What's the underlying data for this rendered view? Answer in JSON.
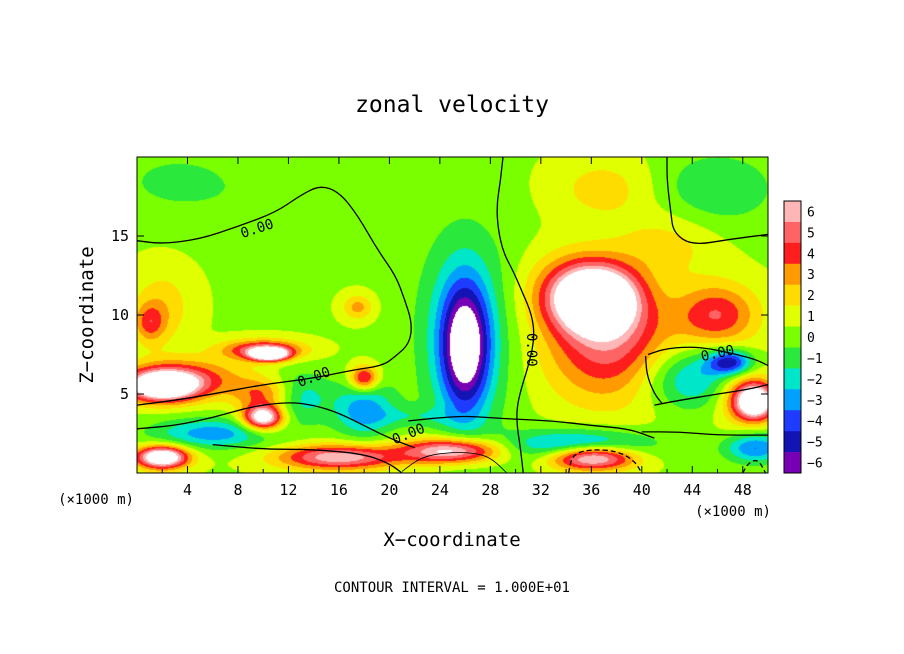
{
  "chart_data": {
    "type": "heatmap",
    "title": "zonal velocity",
    "xlabel": "X−coordinate",
    "ylabel": "Z−coordinate",
    "x_unit": "(×1000 m)",
    "y_unit": "(×1000 m)",
    "xlim": [
      0,
      50
    ],
    "ylim": [
      0,
      20
    ],
    "x_ticks": [
      4,
      8,
      12,
      16,
      20,
      24,
      28,
      32,
      36,
      40,
      44,
      48
    ],
    "x_tick_labels": [
      "4",
      "8",
      "12",
      "16",
      "20",
      "24",
      "28",
      "32",
      "36",
      "40",
      "44",
      "48"
    ],
    "y_ticks": [
      5,
      10,
      15
    ],
    "y_tick_labels": [
      "5",
      "10",
      "15"
    ],
    "colorbar": {
      "levels": [
        6,
        5,
        4,
        3,
        2,
        1,
        0,
        -1,
        -2,
        -3,
        -4,
        -5,
        -6
      ],
      "labels": [
        "6",
        "5",
        "4",
        "3",
        "2",
        "1",
        "0",
        "−1",
        "−2",
        "−3",
        "−4",
        "−5",
        "−6"
      ],
      "colors": [
        "#ffb6b6",
        "#ff6464",
        "#ff1e1e",
        "#ff9a00",
        "#ffdc00",
        "#e0ff00",
        "#7aff00",
        "#2ae83c",
        "#00e6c8",
        "#00a0ff",
        "#1e3cff",
        "#1414b4",
        "#7800b4"
      ]
    },
    "field_blobs": [
      {
        "x": 26.0,
        "z": 8.0,
        "rx": 2.4,
        "rz": 5.0,
        "value": -7
      },
      {
        "x": 26.0,
        "z": 9.0,
        "rx": 5.0,
        "rz": 8.5,
        "value": -2.4
      },
      {
        "x": 18.0,
        "z": 4.0,
        "rx": 3.0,
        "rz": 2.2,
        "value": -3.5
      },
      {
        "x": 16.0,
        "z": 1.0,
        "rx": 6.0,
        "rz": 1.0,
        "value": 6
      },
      {
        "x": 25.0,
        "z": 1.4,
        "rx": 5.0,
        "rz": 1.0,
        "value": 7
      },
      {
        "x": 36.5,
        "z": 11.0,
        "rx": 4.0,
        "rz": 2.5,
        "value": 8
      },
      {
        "x": 37.5,
        "z": 8.0,
        "rx": 6.5,
        "rz": 4.5,
        "value": 4.5
      },
      {
        "x": 35.0,
        "z": 11.5,
        "rx": 5.0,
        "rz": 3.0,
        "value": 3.5
      },
      {
        "x": 46.0,
        "z": 10.0,
        "rx": 4.0,
        "rz": 2.5,
        "value": 4
      },
      {
        "x": 42.0,
        "z": 14.5,
        "rx": 5.0,
        "rz": 2.5,
        "value": 1.5
      },
      {
        "x": 37.0,
        "z": 18.0,
        "rx": 5.0,
        "rz": 2.5,
        "value": 1.6
      },
      {
        "x": 44.0,
        "z": 6.0,
        "rx": 5.0,
        "rz": 2.5,
        "value": -3.5
      },
      {
        "x": 47.0,
        "z": 7.0,
        "rx": 2.2,
        "rz": 1.0,
        "value": -5.5
      },
      {
        "x": 35.0,
        "z": 1.6,
        "rx": 7.0,
        "rz": 1.3,
        "value": -5
      },
      {
        "x": 36.0,
        "z": 1.0,
        "rx": 4.5,
        "rz": 1.0,
        "value": 9
      },
      {
        "x": 49.0,
        "z": 4.5,
        "rx": 2.0,
        "rz": 1.4,
        "value": 8
      },
      {
        "x": 48.0,
        "z": 5.0,
        "rx": 3.0,
        "rz": 2.4,
        "value": 3
      },
      {
        "x": 49.0,
        "z": 1.6,
        "rx": 3.0,
        "rz": 1.2,
        "value": -4
      },
      {
        "x": 2.0,
        "z": 5.5,
        "rx": 3.5,
        "rz": 1.2,
        "value": 9
      },
      {
        "x": 4.0,
        "z": 6.0,
        "rx": 6.0,
        "rz": 1.6,
        "value": 3.5
      },
      {
        "x": 10.0,
        "z": 5.0,
        "rx": 3.0,
        "rz": 1.2,
        "value": 3
      },
      {
        "x": 10.0,
        "z": 3.5,
        "rx": 2.0,
        "rz": 1.0,
        "value": 8
      },
      {
        "x": 10.0,
        "z": 7.8,
        "rx": 4.0,
        "rz": 0.8,
        "value": 5
      },
      {
        "x": 10.5,
        "z": 7.5,
        "rx": 1.8,
        "rz": 0.5,
        "value": 8
      },
      {
        "x": 18.0,
        "z": 6.0,
        "rx": 1.4,
        "rz": 1.0,
        "value": 5
      },
      {
        "x": 6.0,
        "z": 2.5,
        "rx": 6.0,
        "rz": 1.2,
        "value": -3.5
      },
      {
        "x": 2.0,
        "z": 1.0,
        "rx": 2.6,
        "rz": 0.9,
        "value": 9
      },
      {
        "x": 13.0,
        "z": 4.8,
        "rx": 3.0,
        "rz": 2.0,
        "value": -2.5
      },
      {
        "x": 2.0,
        "z": 10.5,
        "rx": 3.0,
        "rz": 3.0,
        "value": 1.8
      },
      {
        "x": 1.0,
        "z": 9.5,
        "rx": 1.5,
        "rz": 1.5,
        "value": 2.8
      },
      {
        "x": 17.5,
        "z": 10.5,
        "rx": 1.5,
        "rz": 1.0,
        "value": 2.5
      },
      {
        "x": 10.0,
        "z": 17.5,
        "rx": 10.0,
        "rz": 3.0,
        "value": -0.6
      },
      {
        "x": 46.0,
        "z": 18.0,
        "rx": 6.0,
        "rz": 3.0,
        "value": -1.8
      },
      {
        "x": 3.0,
        "z": 18.5,
        "rx": 5.0,
        "rz": 2.0,
        "value": -1.2
      },
      {
        "x": 22.0,
        "z": 3.6,
        "rx": 4.5,
        "rz": 0.8,
        "value": -1.2
      }
    ],
    "contour_lines": [
      {
        "label": "0.00",
        "style": "solid",
        "points": [
          [
            0,
            14.7
          ],
          [
            2,
            14.5
          ],
          [
            5,
            14.8
          ],
          [
            8,
            15.6
          ],
          [
            11,
            16.5
          ],
          [
            13,
            17.6
          ],
          [
            14.5,
            18.2
          ],
          [
            16,
            17.8
          ],
          [
            17.5,
            16.3
          ],
          [
            19,
            14.2
          ],
          [
            20.5,
            12.5
          ],
          [
            21.2,
            11
          ],
          [
            21.8,
            9.5
          ],
          [
            21.6,
            8.2
          ],
          [
            20.5,
            7.4
          ],
          [
            19.5,
            6.8
          ],
          [
            17,
            6.5
          ],
          [
            14,
            6.0
          ],
          [
            10,
            5.6
          ],
          [
            6,
            5.0
          ],
          [
            3,
            4.6
          ],
          [
            0,
            4.3
          ]
        ]
      },
      {
        "label": "0.00",
        "style": "solid",
        "points": [
          [
            0,
            2.8
          ],
          [
            3,
            3.0
          ],
          [
            6,
            3.5
          ],
          [
            9,
            4.2
          ],
          [
            12,
            4.5
          ],
          [
            14,
            4.3
          ],
          [
            16,
            3.8
          ],
          [
            18,
            3.0
          ],
          [
            20,
            2.2
          ],
          [
            22,
            1.6
          ]
        ]
      },
      {
        "label": "",
        "style": "solid",
        "points": [
          [
            6,
            1.8
          ],
          [
            10,
            1.5
          ],
          [
            14,
            1.5
          ],
          [
            18,
            1.2
          ],
          [
            20,
            0.6
          ],
          [
            21,
            0
          ]
        ]
      },
      {
        "label": "0.00",
        "style": "solid",
        "points": [
          [
            29,
            20
          ],
          [
            28.8,
            18.5
          ],
          [
            28.5,
            17
          ],
          [
            28.6,
            15.5
          ],
          [
            29,
            14
          ],
          [
            29.8,
            12.8
          ],
          [
            30.5,
            11.5
          ],
          [
            31.3,
            10
          ],
          [
            31.5,
            8.6
          ],
          [
            31.1,
            7
          ],
          [
            30.5,
            5.5
          ],
          [
            30.1,
            4.2
          ],
          [
            30.1,
            3
          ],
          [
            30.4,
            1.5
          ],
          [
            30.6,
            0
          ]
        ]
      },
      {
        "label": "",
        "style": "solid",
        "points": [
          [
            21.5,
            3.3
          ],
          [
            24,
            3.5
          ],
          [
            26,
            3.6
          ],
          [
            28,
            3.5
          ],
          [
            30.1,
            3.4
          ],
          [
            33,
            3.3
          ],
          [
            36,
            3.0
          ],
          [
            39,
            2.8
          ],
          [
            41,
            2.2
          ]
        ]
      },
      {
        "label": "",
        "style": "solid",
        "points": [
          [
            42,
            20
          ],
          [
            42,
            18.5
          ],
          [
            42.3,
            16.5
          ],
          [
            42.5,
            15.2
          ],
          [
            44,
            14.4
          ],
          [
            47,
            14.8
          ],
          [
            50,
            15.1
          ]
        ]
      },
      {
        "label": "0.00",
        "style": "solid",
        "points": [
          [
            40.5,
            7.5
          ],
          [
            42,
            7.9
          ],
          [
            44.5,
            8.0
          ],
          [
            47,
            7.6
          ],
          [
            49,
            7.2
          ],
          [
            50,
            6.8
          ]
        ]
      },
      {
        "label": "",
        "style": "solid",
        "points": [
          [
            41,
            4.3
          ],
          [
            43,
            4.6
          ],
          [
            46,
            5.0
          ],
          [
            48.5,
            5.3
          ],
          [
            50,
            5.6
          ]
        ]
      },
      {
        "label": "",
        "style": "solid",
        "points": [
          [
            40.3,
            7.4
          ],
          [
            40.4,
            6.2
          ],
          [
            41,
            5.0
          ],
          [
            41.6,
            4.4
          ]
        ]
      },
      {
        "label": "",
        "style": "solid",
        "points": [
          [
            40,
            2.6
          ],
          [
            43,
            2.6
          ],
          [
            46,
            2.4
          ],
          [
            50,
            2.4
          ]
        ]
      },
      {
        "label": "",
        "style": "thin",
        "points": [
          [
            21,
            0.1
          ],
          [
            22.5,
            1.0
          ],
          [
            24.5,
            1.3
          ],
          [
            26.5,
            1.3
          ],
          [
            28,
            1.0
          ],
          [
            29.3,
            0
          ]
        ]
      },
      {
        "label": "",
        "style": "dashed",
        "points": [
          [
            34.2,
            0
          ],
          [
            34.5,
            1.2
          ],
          [
            36,
            1.5
          ],
          [
            38,
            1.4
          ],
          [
            39.4,
            0.8
          ],
          [
            40,
            0
          ]
        ]
      },
      {
        "label": "",
        "style": "dashed",
        "points": [
          [
            48,
            0
          ],
          [
            48.4,
            0.6
          ],
          [
            49.2,
            0.9
          ],
          [
            49.8,
            0
          ]
        ]
      }
    ],
    "note": "CONTOUR INTERVAL = 1.000E+01"
  }
}
